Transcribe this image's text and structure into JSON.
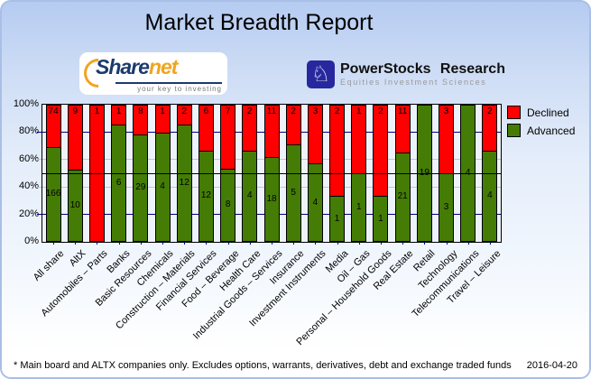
{
  "header": {
    "title": "Market Breadth Report"
  },
  "logos": {
    "sharenet": {
      "word_share": "Share",
      "word_net": "net",
      "tagline": "your key to investing",
      "navy": "#1c3a6d",
      "orange": "#f2a41f"
    },
    "powerstocks": {
      "name": "PowerStocks Research",
      "subtitle": "Equities Investment Sciences",
      "square_color": "#28289e",
      "knight_icon": "♘"
    }
  },
  "chart_data": {
    "type": "bar",
    "stacked": true,
    "unit": "percent of companies",
    "categories": [
      "All share",
      "AltX",
      "Automobiles – Parts",
      "Banks",
      "Basic Resources",
      "Chemicals",
      "Construction – Materials",
      "Financial Services",
      "Food – Beverage",
      "Health Care",
      "Industrial Goods – Services",
      "Insurance",
      "Investment Instruments",
      "Media",
      "Oil – Gas",
      "Personal – Household Goods",
      "Real Estate",
      "Retail",
      "Technology",
      "Telecommunications",
      "Travel – Leisure"
    ],
    "series": [
      {
        "name": "Declined",
        "color": "#fe0000",
        "values": [
          74,
          9,
          1,
          1,
          8,
          1,
          2,
          6,
          7,
          2,
          11,
          2,
          3,
          2,
          1,
          2,
          11,
          0,
          3,
          0,
          2
        ]
      },
      {
        "name": "Advanced",
        "color": "#447c05",
        "values": [
          166,
          10,
          0,
          6,
          29,
          4,
          12,
          12,
          8,
          4,
          18,
          5,
          4,
          1,
          1,
          1,
          21,
          19,
          3,
          4,
          4
        ]
      }
    ],
    "ylim": [
      0,
      100
    ],
    "y_ticks": [
      {
        "label": "100%",
        "pct": 100
      },
      {
        "label": "80%",
        "pct": 80
      },
      {
        "label": "60%",
        "pct": 60
      },
      {
        "label": "40%",
        "pct": 40
      },
      {
        "label": "20%",
        "pct": 20
      },
      {
        "label": "0%",
        "pct": 0
      }
    ],
    "gridlines": [
      {
        "pct": 80,
        "color": "#000080",
        "front": false
      },
      {
        "pct": 60,
        "color": "#c6c6c6",
        "front": false
      },
      {
        "pct": 50,
        "color": "#000000",
        "front": true
      },
      {
        "pct": 40,
        "color": "#c6c6c6",
        "front": false
      },
      {
        "pct": 20,
        "color": "#000080",
        "front": false
      }
    ],
    "legend": [
      "Declined",
      "Advanced"
    ],
    "legend_position": "right-top",
    "grid": true
  },
  "footer": {
    "note": "* Main board and ALTX companies only. Excludes options, warrants, derivatives, debt and exchange traded funds",
    "date": "2016-04-20"
  }
}
